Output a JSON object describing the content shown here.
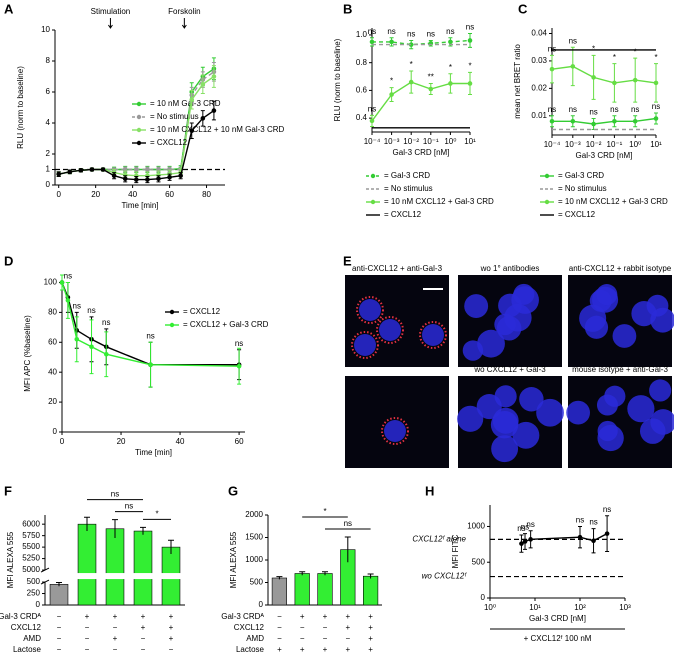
{
  "chart_data": [
    {
      "panel": "A",
      "type": "line",
      "xlabel": "Time [min]",
      "ylabel": "RLU (norm to baseline)",
      "x": [
        0,
        6,
        12,
        18,
        24,
        30,
        36,
        42,
        48,
        54,
        60,
        66,
        72,
        78,
        84
      ],
      "xlim": [
        -2,
        90
      ],
      "xticks": [
        0,
        20,
        40,
        60,
        80
      ],
      "ylim": [
        0,
        10
      ],
      "yticks": [
        0,
        1,
        2,
        4,
        6,
        8,
        10
      ],
      "annotations": [
        {
          "text": "Stimulation",
          "x": 28
        },
        {
          "text": "Forskolin",
          "x": 68
        }
      ],
      "reference_lines": [
        {
          "value": 1
        }
      ],
      "series": [
        {
          "name": "= 10 nM Gal-3 CRD",
          "color": "#33cc33",
          "values": [
            0.7,
            0.85,
            0.95,
            1.0,
            1.0,
            1.0,
            1.0,
            1.0,
            1.0,
            1.0,
            1.0,
            1.05,
            6.0,
            7.0,
            7.5
          ],
          "errors": [
            0.15,
            0.12,
            0.1,
            0.1,
            0.1,
            0.15,
            0.2,
            0.2,
            0.2,
            0.2,
            0.2,
            0.2,
            0.6,
            0.6,
            0.7
          ]
        },
        {
          "name": "= No stimulus",
          "color": "#999999",
          "dashed": true,
          "values": [
            0.7,
            0.85,
            0.95,
            1.0,
            1.0,
            1.0,
            1.0,
            1.0,
            1.0,
            1.0,
            1.0,
            1.0,
            5.8,
            6.8,
            7.3
          ],
          "errors": [
            0.15,
            0.12,
            0.1,
            0.1,
            0.1,
            0.1,
            0.15,
            0.15,
            0.15,
            0.15,
            0.15,
            0.15,
            0.5,
            0.5,
            0.6
          ]
        },
        {
          "name": "= 10 nM CXCL12 + 10 nM Gal-3 CRD",
          "color": "#88e066",
          "values": [
            0.7,
            0.85,
            0.95,
            1.0,
            1.0,
            0.8,
            0.65,
            0.6,
            0.6,
            0.65,
            0.7,
            0.8,
            5.5,
            6.5,
            7.0
          ],
          "errors": [
            0.15,
            0.12,
            0.1,
            0.1,
            0.1,
            0.2,
            0.25,
            0.25,
            0.25,
            0.25,
            0.25,
            0.25,
            0.6,
            0.6,
            0.7
          ]
        },
        {
          "name": "= CXCL12",
          "color": "#000000",
          "values": [
            0.7,
            0.85,
            0.95,
            1.0,
            1.0,
            0.6,
            0.4,
            0.35,
            0.35,
            0.4,
            0.5,
            0.6,
            3.5,
            4.3,
            4.8
          ],
          "errors": [
            0.15,
            0.12,
            0.1,
            0.1,
            0.1,
            0.2,
            0.2,
            0.2,
            0.2,
            0.2,
            0.2,
            0.2,
            0.5,
            0.5,
            0.6
          ]
        }
      ]
    },
    {
      "panel": "B",
      "type": "line",
      "log_x": true,
      "xlabel": "Gal-3 CRD [nM]",
      "ylabel": "RLU (norm to baseline)",
      "x": [
        0.0001,
        0.001,
        0.01,
        0.1,
        1,
        10
      ],
      "xlim": [
        0.0001,
        10
      ],
      "xticks": [
        {
          "value": 0.0001,
          "label": "10⁻⁴"
        },
        {
          "value": 0.001,
          "label": "10⁻³"
        },
        {
          "value": 0.01,
          "label": "10⁻²"
        },
        {
          "value": 0.1,
          "label": "10⁻¹"
        },
        {
          "value": 1,
          "label": "10⁰"
        },
        {
          "value": 10,
          "label": "10¹"
        }
      ],
      "ylim": [
        0.3,
        1.05
      ],
      "yticks": [
        0.4,
        0.6,
        0.8,
        {
          "value": 1,
          "label": "1.0"
        }
      ],
      "series": [
        {
          "name": "= Gal-3 CRD",
          "color": "#33cc33",
          "dashed": true,
          "values": [
            0.95,
            0.95,
            0.93,
            0.94,
            0.95,
            0.96
          ],
          "errors": [
            0.03,
            0.03,
            0.03,
            0.02,
            0.03,
            0.05
          ],
          "significance": [
            "ns",
            "ns",
            "ns",
            "ns",
            "ns",
            "ns"
          ]
        },
        {
          "name": "= No stimulus",
          "color": "#999999",
          "dashed": true,
          "markers": false,
          "values": [
            0.93,
            0.93,
            0.93,
            0.93,
            0.93,
            0.93
          ]
        },
        {
          "name": "= 10 nM CXCL12 + Gal-3 CRD",
          "color": "#66dd44",
          "values": [
            0.38,
            0.57,
            0.66,
            0.61,
            0.65,
            0.65
          ],
          "errors": [
            0.04,
            0.05,
            0.08,
            0.04,
            0.07,
            0.08
          ],
          "significance": [
            "ns",
            "*",
            "*",
            "**",
            "*",
            "*"
          ]
        },
        {
          "name": "= CXCL12",
          "color": "#000000",
          "markers": false,
          "values": [
            0.33,
            0.33,
            0.33,
            0.33,
            0.33,
            0.33
          ]
        }
      ]
    },
    {
      "panel": "C",
      "type": "line",
      "log_x": true,
      "xlabel": "Gal-3 CRD [nM]",
      "ylabel": "mean net BRET ratio",
      "x": [
        0.0001,
        0.001,
        0.01,
        0.1,
        1,
        10
      ],
      "xlim": [
        0.0001,
        10
      ],
      "xticks": [
        {
          "value": 0.0001,
          "label": "10⁻⁴"
        },
        {
          "value": 0.001,
          "label": "10⁻³"
        },
        {
          "value": 0.01,
          "label": "10⁻²"
        },
        {
          "value": 0.1,
          "label": "10⁻¹"
        },
        {
          "value": 1,
          "label": "10⁰"
        },
        {
          "value": 10,
          "label": "10¹"
        }
      ],
      "ylim": [
        0.003,
        0.042
      ],
      "yticks": [
        0.01,
        0.02,
        0.03,
        0.04
      ],
      "series": [
        {
          "name": "= Gal-3 CRD",
          "color": "#33cc33",
          "values": [
            0.008,
            0.008,
            0.007,
            0.008,
            0.008,
            0.009
          ],
          "errors": [
            0.002,
            0.002,
            0.002,
            0.002,
            0.002,
            0.002
          ],
          "significance": [
            "ns",
            "ns",
            "ns",
            "ns",
            "ns",
            "ns"
          ]
        },
        {
          "name": "= No stimulus",
          "color": "#999999",
          "dashed": true,
          "markers": false,
          "values": [
            0.005,
            0.005,
            0.005,
            0.005,
            0.005,
            0.005
          ]
        },
        {
          "name": "= 10 nM CXCL12 + Gal-3 CRD",
          "color": "#66dd44",
          "values": [
            0.027,
            0.028,
            0.024,
            0.022,
            0.023,
            0.022
          ],
          "errors": [
            0.005,
            0.007,
            0.008,
            0.007,
            0.008,
            0.007
          ],
          "significance": [
            "ns",
            "ns",
            "*",
            "*",
            "*",
            "*"
          ]
        },
        {
          "name": "= CXCL12",
          "color": "#000000",
          "markers": false,
          "values": [
            0.034,
            0.034,
            0.034,
            0.034,
            0.034,
            0.034
          ]
        }
      ]
    },
    {
      "panel": "D",
      "type": "line",
      "xlabel": "Time [min]",
      "ylabel": "MFI APC (%baseline)",
      "x": [
        0,
        2,
        5,
        10,
        15,
        30,
        60
      ],
      "xlim": [
        0,
        62
      ],
      "xticks": [
        0,
        20,
        40,
        60
      ],
      "ylim": [
        0,
        105
      ],
      "yticks": [
        0,
        20,
        40,
        60,
        80,
        100
      ],
      "series": [
        {
          "name": "= CXCL12",
          "color": "#000000",
          "values": [
            100,
            90,
            68,
            62,
            57,
            45,
            45
          ],
          "errors": [
            5,
            10,
            12,
            15,
            12,
            15,
            10
          ],
          "significance": [
            null,
            "ns",
            "ns",
            "ns",
            "ns",
            "ns",
            "ns"
          ]
        },
        {
          "name": "= CXCL12 + Gal-3 CRD",
          "color": "#33ee33",
          "values": [
            100,
            88,
            62,
            57,
            52,
            45,
            44
          ],
          "errors": [
            5,
            12,
            15,
            18,
            15,
            15,
            12
          ]
        }
      ]
    },
    {
      "panel": "F",
      "type": "bar",
      "ylabel": "MFI ALEXA 555",
      "categories": [
        null,
        null,
        null,
        null,
        null
      ],
      "values": [
        450,
        6000,
        5900,
        5850,
        5500
      ],
      "errors": [
        40,
        150,
        200,
        80,
        150
      ],
      "colors": [
        "#999999",
        "#33ee33",
        "#33ee33",
        "#33ee33",
        "#33ee33"
      ],
      "ylim": [
        0,
        6200
      ],
      "yticks": [
        0,
        250,
        500,
        5000,
        5250,
        5500,
        5750,
        6000
      ],
      "conditions": [
        {
          "name": "Gal-3 CRDᴬ",
          "values": [
            "−",
            "+",
            "+",
            "+",
            "+"
          ]
        },
        {
          "name": "CXCL12",
          "values": [
            "−",
            "−",
            "−",
            "+",
            "+"
          ]
        },
        {
          "name": "AMD",
          "values": [
            "−",
            "−",
            "+",
            "−",
            "+"
          ]
        },
        {
          "name": "Lactose",
          "values": [
            "−",
            "−",
            "−",
            "−",
            "−"
          ]
        }
      ],
      "brackets": [
        {
          "between": [
            2,
            3
          ],
          "text": "ns"
        },
        {
          "between": [
            3,
            4
          ],
          "text": "*"
        },
        {
          "between": [
            1,
            3
          ],
          "text": "ns"
        }
      ]
    },
    {
      "panel": "G",
      "type": "bar",
      "ylabel": "MFI ALEXA 555",
      "categories": [
        null,
        null,
        null,
        null,
        null
      ],
      "values": [
        600,
        700,
        700,
        1230,
        640
      ],
      "errors": [
        30,
        40,
        40,
        280,
        50
      ],
      "colors": [
        "#999999",
        "#33ee33",
        "#33ee33",
        "#33ee33",
        "#33ee33"
      ],
      "ylim": [
        0,
        2000
      ],
      "yticks": [
        0,
        500,
        1000,
        1500,
        2000
      ],
      "conditions": [
        {
          "name": "Gal-3 CRDᴬ",
          "values": [
            "−",
            "+",
            "+",
            "+",
            "+"
          ]
        },
        {
          "name": "CXCL12",
          "values": [
            "−",
            "−",
            "−",
            "+",
            "+"
          ]
        },
        {
          "name": "AMD",
          "values": [
            "−",
            "−",
            "−",
            "−",
            "+"
          ]
        },
        {
          "name": "Lactose",
          "values": [
            "+",
            "+",
            "+",
            "+",
            "+"
          ]
        }
      ],
      "brackets": [
        {
          "between": [
            2,
            4
          ],
          "text": "ns"
        },
        {
          "between": [
            1,
            3
          ],
          "text": "*"
        }
      ]
    },
    {
      "panel": "H",
      "type": "line",
      "log_x": true,
      "xlabel": "Gal-3 CRD [nM]",
      "ylabel": "MFI FITC",
      "footnote": "+ CXCL12ᶠ 100 nM",
      "x": [
        5,
        6,
        8,
        100,
        200,
        400
      ],
      "xlim": [
        1,
        1000
      ],
      "xticks": [
        {
          "value": 1,
          "label": "10⁰"
        },
        {
          "value": 10,
          "label": "10¹"
        },
        {
          "value": 100,
          "label": "10²"
        },
        {
          "value": 1000,
          "label": "10³"
        }
      ],
      "ylim": [
        0,
        1300
      ],
      "yticks": [
        0,
        500,
        1000
      ],
      "reference_lines": [
        {
          "value": 820,
          "label": "CXCL12ᶠ alone"
        },
        {
          "value": 300,
          "label": "wo CXCL12ᶠ"
        }
      ],
      "series": [
        {
          "color": "#000000",
          "values": [
            760,
            790,
            820,
            850,
            800,
            900
          ],
          "errors": [
            120,
            110,
            120,
            150,
            170,
            250
          ],
          "significance": [
            "ns",
            "ns",
            "ns",
            "ns",
            "ns",
            "ns"
          ]
        }
      ]
    }
  ],
  "images": {
    "panel": "E",
    "captions": [
      "anti-CXCL12 + anti-Gal-3",
      "wo 1° antibodies",
      "anti-CXCL12 + rabbit isotype",
      null,
      "wo CXCL12 + Gal-3",
      "mouse isotype + anti-Gal-3"
    ]
  }
}
